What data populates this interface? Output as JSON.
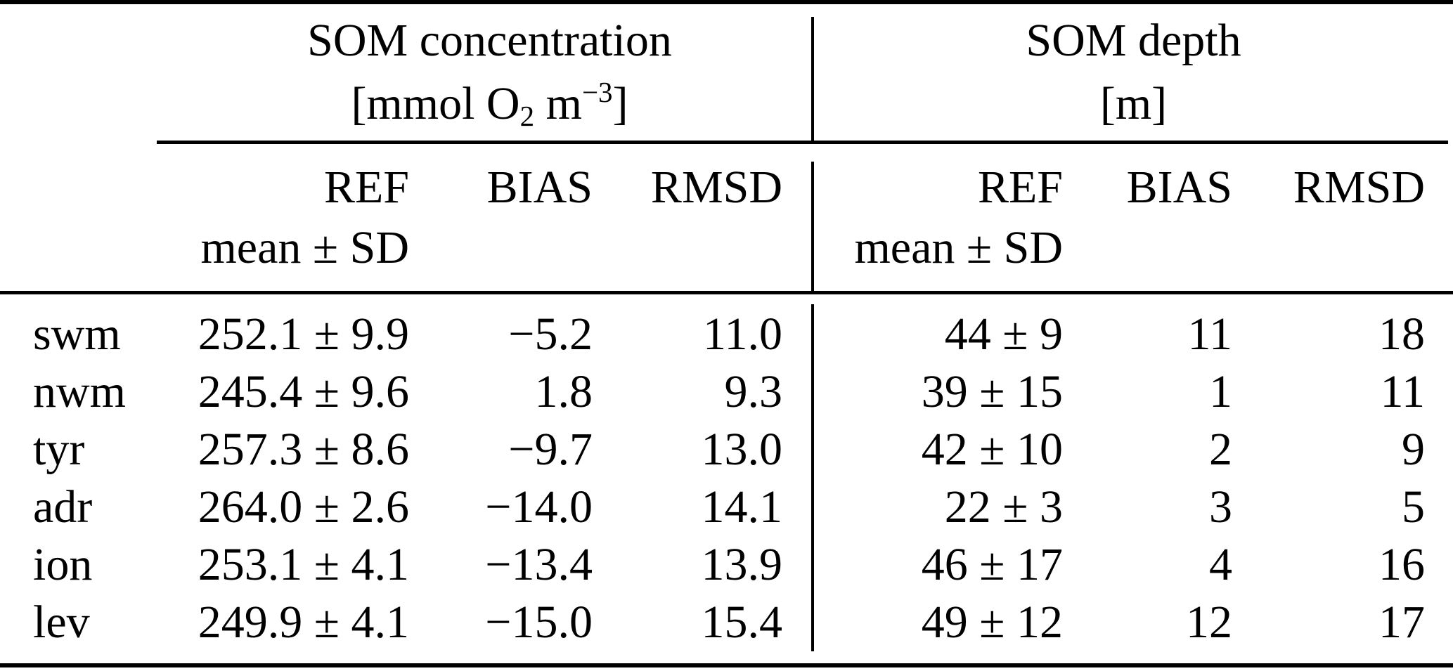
{
  "colors": {
    "text": "#000000",
    "background": "#ffffff",
    "rule": "#000000"
  },
  "table": {
    "group_headers": [
      {
        "title": "SOM concentration",
        "unit_prefix": "[mmol O",
        "unit_sub": "2",
        "unit_mid": " m",
        "unit_sup": "−3",
        "unit_suffix": "]"
      },
      {
        "title": "SOM depth",
        "unit_prefix": "[m]",
        "unit_sub": "",
        "unit_mid": "",
        "unit_sup": "",
        "unit_suffix": ""
      }
    ],
    "subheader": {
      "ref": "REF",
      "mean_sd": "mean ± SD",
      "bias": "BIAS",
      "rmsd": "RMSD"
    },
    "rows": [
      {
        "label": "swm",
        "conc_ref": "252.1 ± 9.9",
        "conc_bias": "−5.2",
        "conc_rmsd": "11.0",
        "depth_ref": "44 ± 9",
        "depth_bias": "11",
        "depth_rmsd": "18"
      },
      {
        "label": "nwm",
        "conc_ref": "245.4 ± 9.6",
        "conc_bias": "1.8",
        "conc_rmsd": "9.3",
        "depth_ref": "39 ± 15",
        "depth_bias": "1",
        "depth_rmsd": "11"
      },
      {
        "label": "tyr",
        "conc_ref": "257.3 ± 8.6",
        "conc_bias": "−9.7",
        "conc_rmsd": "13.0",
        "depth_ref": "42 ± 10",
        "depth_bias": "2",
        "depth_rmsd": "9"
      },
      {
        "label": "adr",
        "conc_ref": "264.0 ± 2.6",
        "conc_bias": "−14.0",
        "conc_rmsd": "14.1",
        "depth_ref": "22 ± 3",
        "depth_bias": "3",
        "depth_rmsd": "5"
      },
      {
        "label": "ion",
        "conc_ref": "253.1 ± 4.1",
        "conc_bias": "−13.4",
        "conc_rmsd": "13.9",
        "depth_ref": "46 ± 17",
        "depth_bias": "4",
        "depth_rmsd": "16"
      },
      {
        "label": "lev",
        "conc_ref": "249.9 ± 4.1",
        "conc_bias": "−15.0",
        "conc_rmsd": "15.4",
        "depth_ref": "49 ± 12",
        "depth_bias": "12",
        "depth_rmsd": "17"
      }
    ]
  }
}
